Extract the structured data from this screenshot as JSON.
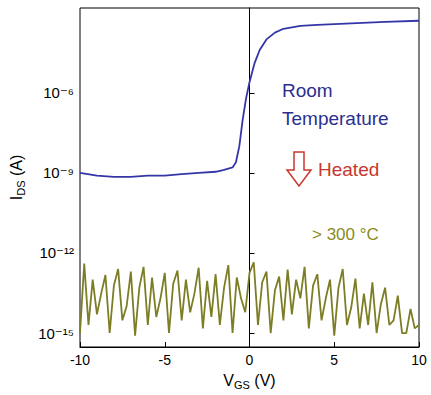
{
  "chart_data": {
    "type": "line",
    "xlabel": {
      "text": "V",
      "sub": "GS",
      "rest": " (V)"
    },
    "ylabel": {
      "text": "I",
      "sub": "DS",
      "rest": " (A)"
    },
    "log": "y",
    "grid": false,
    "xlim": [
      -10,
      10
    ],
    "xticks": [
      -10,
      -5,
      0,
      5,
      10
    ],
    "ylim": [
      3e-16,
      0.0015
    ],
    "yticks": [
      {
        "value": 1e-15,
        "label": "10⁻¹⁵"
      },
      {
        "value": 1e-12,
        "label": "10⁻¹²"
      },
      {
        "value": 1e-09,
        "label": "10⁻⁹"
      },
      {
        "value": 1e-06,
        "label": "10⁻⁶"
      }
    ],
    "annotations": [
      "Room Temperature",
      "Heated",
      "> 300 °C"
    ],
    "series": [
      {
        "color": "#3436a8",
        "x": [
          -10,
          -9,
          -8,
          -7,
          -6,
          -5,
          -4,
          -3,
          -2,
          -1.5,
          -1,
          -0.8,
          -0.6,
          -0.4,
          -0.2,
          0,
          0.3,
          0.6,
          1,
          1.5,
          2,
          3,
          4,
          6,
          8,
          10
        ],
        "values": [
          1e-09,
          7.9e-10,
          7.1e-10,
          7.1e-10,
          7.9e-10,
          7.9e-10,
          8.9e-10,
          1e-09,
          1.1e-09,
          1.3e-09,
          1.6e-09,
          2.5e-09,
          1e-08,
          1e-07,
          6.3e-07,
          2.5e-06,
          1.3e-05,
          4e-05,
          0.0001,
          0.00018,
          0.00025,
          0.00032,
          0.00035,
          0.0004,
          0.00045,
          0.0005
        ]
      },
      {
        "color": "#7d7d25",
        "x": [
          -10,
          -9.75,
          -9.5,
          -9.25,
          -9,
          -8.75,
          -8.5,
          -8.25,
          -8,
          -7.75,
          -7.5,
          -7.25,
          -7,
          -6.75,
          -6.5,
          -6.25,
          -6,
          -5.75,
          -5.5,
          -5.25,
          -5,
          -4.75,
          -4.5,
          -4.25,
          -4,
          -3.75,
          -3.5,
          -3.25,
          -3,
          -2.75,
          -2.5,
          -2.25,
          -2,
          -1.75,
          -1.5,
          -1.25,
          -1,
          -0.75,
          -0.5,
          -0.25,
          0,
          0.25,
          0.5,
          0.75,
          1,
          1.25,
          1.5,
          1.75,
          2,
          2.25,
          2.5,
          2.75,
          3,
          3.25,
          3.5,
          3.75,
          4,
          4.25,
          4.5,
          4.75,
          5,
          5.25,
          5.5,
          5.75,
          6,
          6.25,
          6.5,
          6.75,
          7,
          7.25,
          7.5,
          7.75,
          8,
          8.25,
          8.5,
          8.75,
          9,
          9.25,
          9.5,
          9.75,
          10
        ],
        "values": [
          1e-15,
          4e-13,
          2e-15,
          1e-13,
          5e-15,
          3e-14,
          1.5e-13,
          1e-15,
          6e-14,
          2.5e-13,
          3e-15,
          1e-14,
          2e-13,
          8e-16,
          5e-14,
          3e-13,
          2e-15,
          1.2e-13,
          4e-15,
          2e-14,
          1.8e-13,
          1e-15,
          7e-14,
          2.2e-13,
          3e-15,
          1e-13,
          6e-15,
          3e-14,
          2.8e-13,
          1.5e-15,
          9e-14,
          4e-15,
          1.6e-13,
          2e-15,
          5e-14,
          3.5e-13,
          1e-15,
          1.2e-13,
          2e-14,
          6e-15,
          1.8e-13,
          4.5e-13,
          2e-15,
          8e-14,
          2e-13,
          1e-15,
          4e-14,
          1.3e-13,
          3e-15,
          2.4e-13,
          5e-15,
          1e-13,
          2e-14,
          3e-13,
          1.5e-15,
          6e-14,
          1.6e-13,
          3e-15,
          2e-14,
          1e-13,
          8e-16,
          5e-14,
          2.5e-13,
          2e-15,
          9e-15,
          1.1e-13,
          1.5e-15,
          3e-14,
          2e-15,
          8e-14,
          1e-15,
          1.2e-14,
          5e-14,
          2e-15,
          3e-15,
          2.5e-14,
          1e-15,
          1e-15,
          8e-15,
          1.5e-15,
          2e-15
        ]
      }
    ]
  }
}
